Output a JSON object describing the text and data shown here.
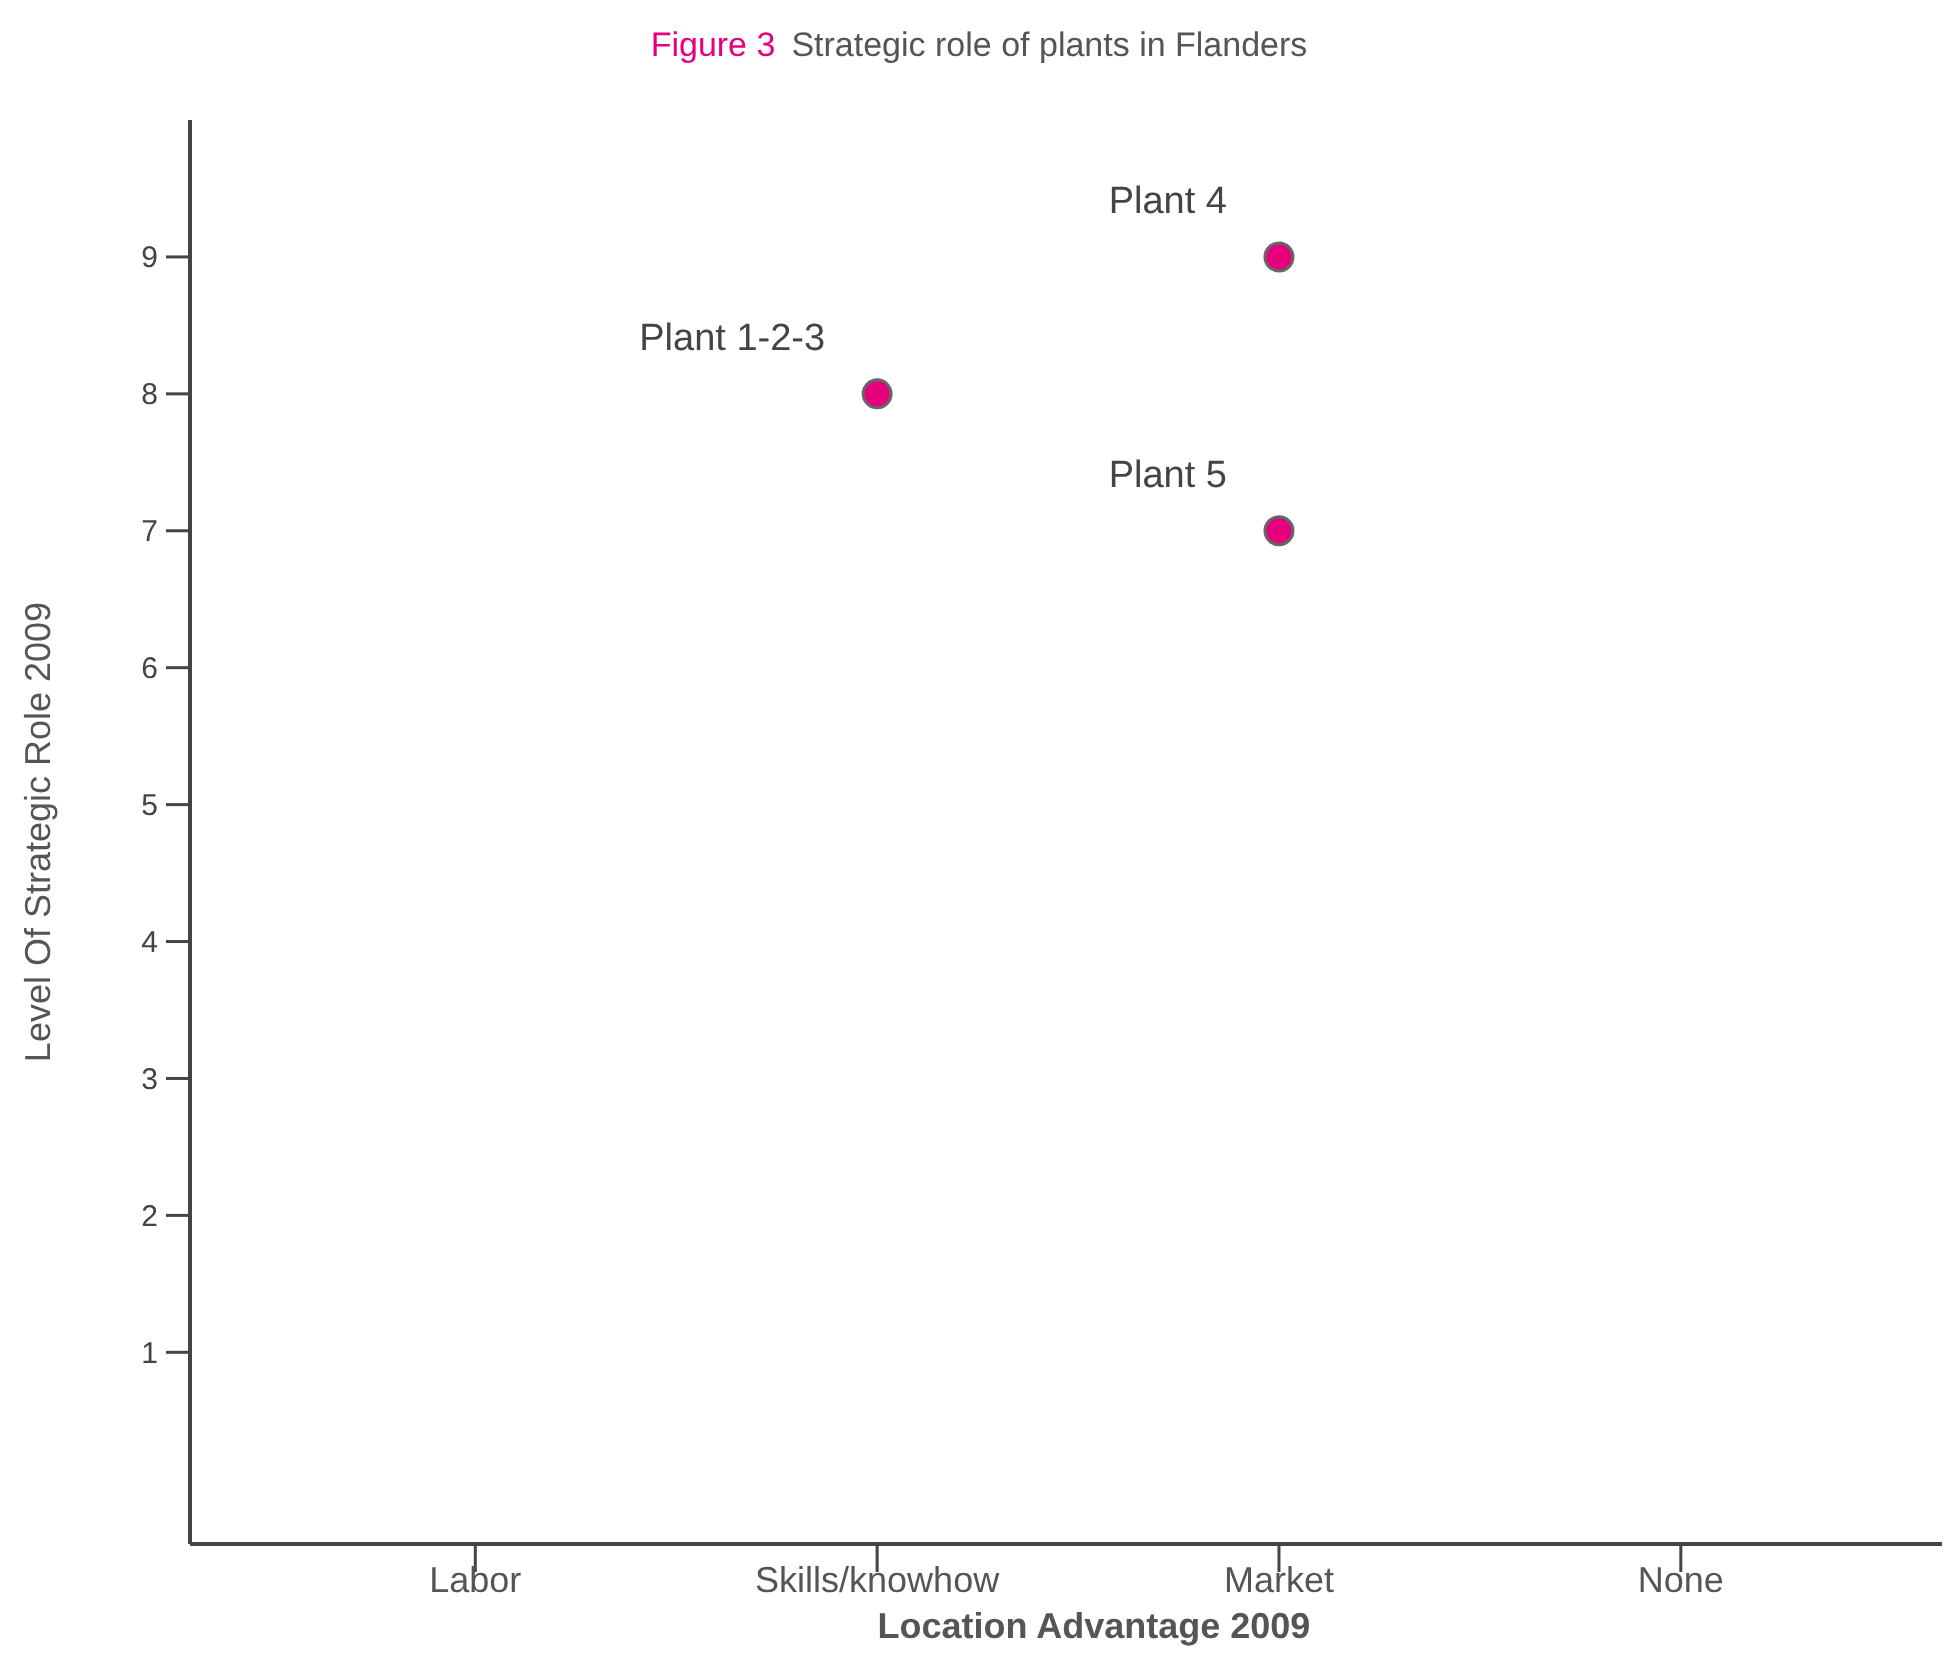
{
  "chart_data": {
    "type": "scatter",
    "title": "Figure 3",
    "subtitle": "Strategic role of plants in Flanders",
    "xlabel": "Location Advantage 2009",
    "ylabel": "Level Of Strategic Role 2009",
    "categories": [
      "Labor",
      "Skills/knowhow",
      "Market",
      "None"
    ],
    "series": [
      {
        "x": [
          "Skills/knowhow",
          "Market",
          "Market"
        ],
        "values": [
          8,
          9,
          7
        ],
        "color": "#e6007e"
      }
    ],
    "ylim": [
      -0.4,
      10
    ],
    "yticks": [
      1,
      2,
      3,
      4,
      5,
      6,
      7,
      8,
      9
    ],
    "marker": "circle",
    "grid": false,
    "annotations": [
      {
        "text": "Plant 1-2-3",
        "x": "Skills/knowhow",
        "y": 8
      },
      {
        "text": "Plant 4",
        "x": "Market",
        "y": 9
      },
      {
        "text": "Plant 5",
        "x": "Market",
        "y": 7
      }
    ]
  }
}
